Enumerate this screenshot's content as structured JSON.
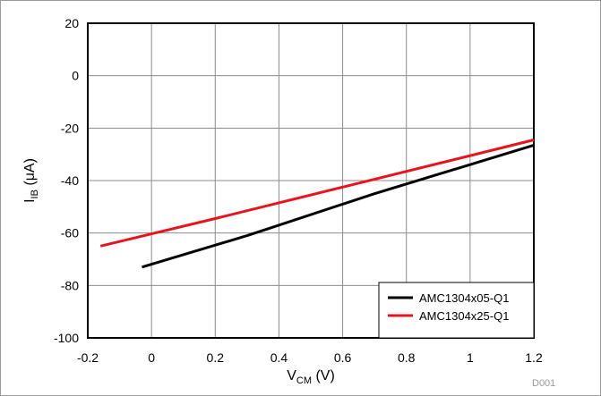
{
  "chart_data": {
    "type": "line",
    "xlabel": {
      "main": "V",
      "sub": "CM",
      "unit": " (V)"
    },
    "ylabel": {
      "main": "I",
      "sub": "IB",
      "unit": " (μA)"
    },
    "xlim": [
      -0.2,
      1.2
    ],
    "ylim": [
      -100,
      20
    ],
    "xticks": [
      -0.2,
      0,
      0.2,
      0.4,
      0.6,
      0.8,
      1,
      1.2
    ],
    "yticks": [
      20,
      0,
      -20,
      -40,
      -60,
      -80,
      -100
    ],
    "xtick_labels": [
      "-0.2",
      "0",
      "0.2",
      "0.4",
      "0.6",
      "0.8",
      "1",
      "1.2"
    ],
    "ytick_labels": [
      "20",
      "0",
      "-20",
      "-40",
      "-60",
      "-80",
      "-100"
    ],
    "grid": true,
    "legend_position": "bottom-right",
    "series": [
      {
        "name": "AMC1304x05-Q1",
        "color": "#000000",
        "x": [
          -0.03,
          0.3,
          0.7,
          1.2
        ],
        "y": [
          -73,
          -61,
          -45,
          -26.5
        ]
      },
      {
        "name": "AMC1304x25-Q1",
        "color": "#e8141c",
        "x": [
          -0.16,
          0.2,
          0.6,
          1.2
        ],
        "y": [
          -65,
          -54.5,
          -42.5,
          -24.5
        ]
      }
    ],
    "watermark": "D001"
  }
}
